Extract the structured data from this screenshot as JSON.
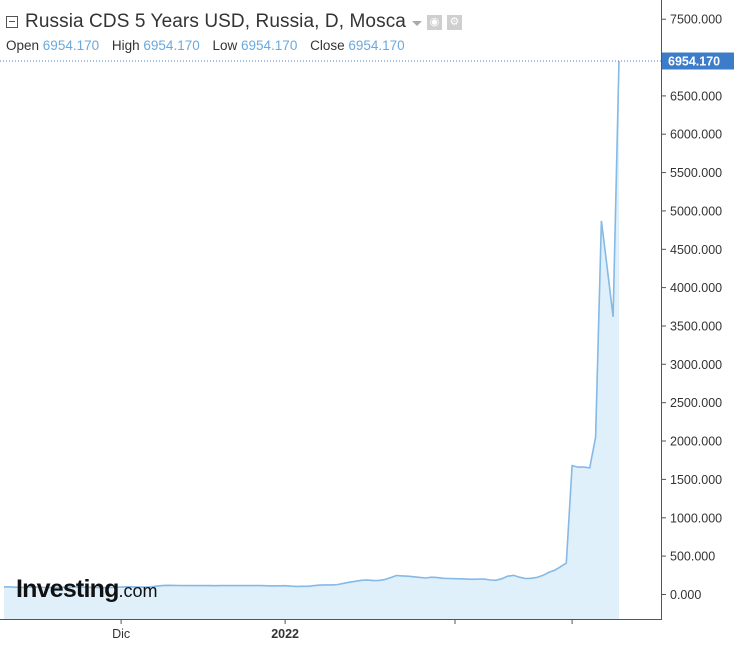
{
  "header": {
    "title": "Russia CDS 5 Years USD, Russia, D, Mosca",
    "ohlc": [
      {
        "label": "Open",
        "value": "6954.170"
      },
      {
        "label": "High",
        "value": "6954.170"
      },
      {
        "label": "Low",
        "value": "6954.170"
      },
      {
        "label": "Close",
        "value": "6954.170"
      }
    ],
    "eye_icon": "eye-icon",
    "settings_icon": "gear-icon"
  },
  "logo": {
    "main": "Investing",
    "suffix": ".com"
  },
  "colors": {
    "line": "#85b9e6",
    "fill": "#dff0fa",
    "price_tag": "#3d7cc9",
    "axis": "#555555",
    "value_text": "#6aa9dd"
  },
  "chart_data": {
    "type": "area",
    "y_ticks": [
      "0.000",
      "500.000",
      "1000.000",
      "1500.000",
      "2000.000",
      "2500.000",
      "3000.000",
      "3500.000",
      "4000.000",
      "4500.000",
      "5000.000",
      "5500.000",
      "6000.000",
      "6500.000",
      "7000.000",
      "7500.000"
    ],
    "y_tick_values": [
      0,
      500,
      1000,
      1500,
      2000,
      2500,
      3000,
      3500,
      4000,
      4500,
      5000,
      5500,
      6000,
      6500,
      7000,
      7500
    ],
    "ylim": [
      -320,
      7750
    ],
    "x_ticks": [
      {
        "label": "Dic",
        "bold": false,
        "index": 20
      },
      {
        "label": "2022",
        "bold": true,
        "index": 48
      },
      {
        "label": "",
        "bold": false,
        "index": 77
      },
      {
        "label": "",
        "bold": false,
        "index": 97
      }
    ],
    "last_value_label": "6954.170",
    "last_value": 6954.17,
    "series": [
      {
        "values": [
          100,
          98,
          95,
          92,
          94,
          96,
          94,
          91,
          90,
          92,
          94,
          96,
          100,
          98,
          95,
          92,
          90,
          88,
          90,
          93,
          96,
          100,
          98,
          96,
          94,
          98,
          108,
          115,
          120,
          118,
          117,
          116,
          117,
          116,
          117,
          115,
          114,
          116,
          115,
          115,
          116,
          115,
          115,
          116,
          115,
          113,
          112,
          113,
          114,
          107,
          105,
          106,
          106,
          115,
          122,
          125,
          124,
          130,
          145,
          160,
          172,
          185,
          190,
          180,
          183,
          194,
          220,
          247,
          242,
          238,
          230,
          222,
          215,
          225,
          220,
          210,
          208,
          205,
          204,
          200,
          198,
          202,
          200,
          188,
          185,
          205,
          238,
          250,
          225,
          208,
          210,
          222,
          248,
          288,
          315,
          360,
          410,
          1680,
          1660,
          1660,
          1650,
          2050,
          4870,
          4250,
          3620,
          6954.17
        ]
      }
    ]
  }
}
